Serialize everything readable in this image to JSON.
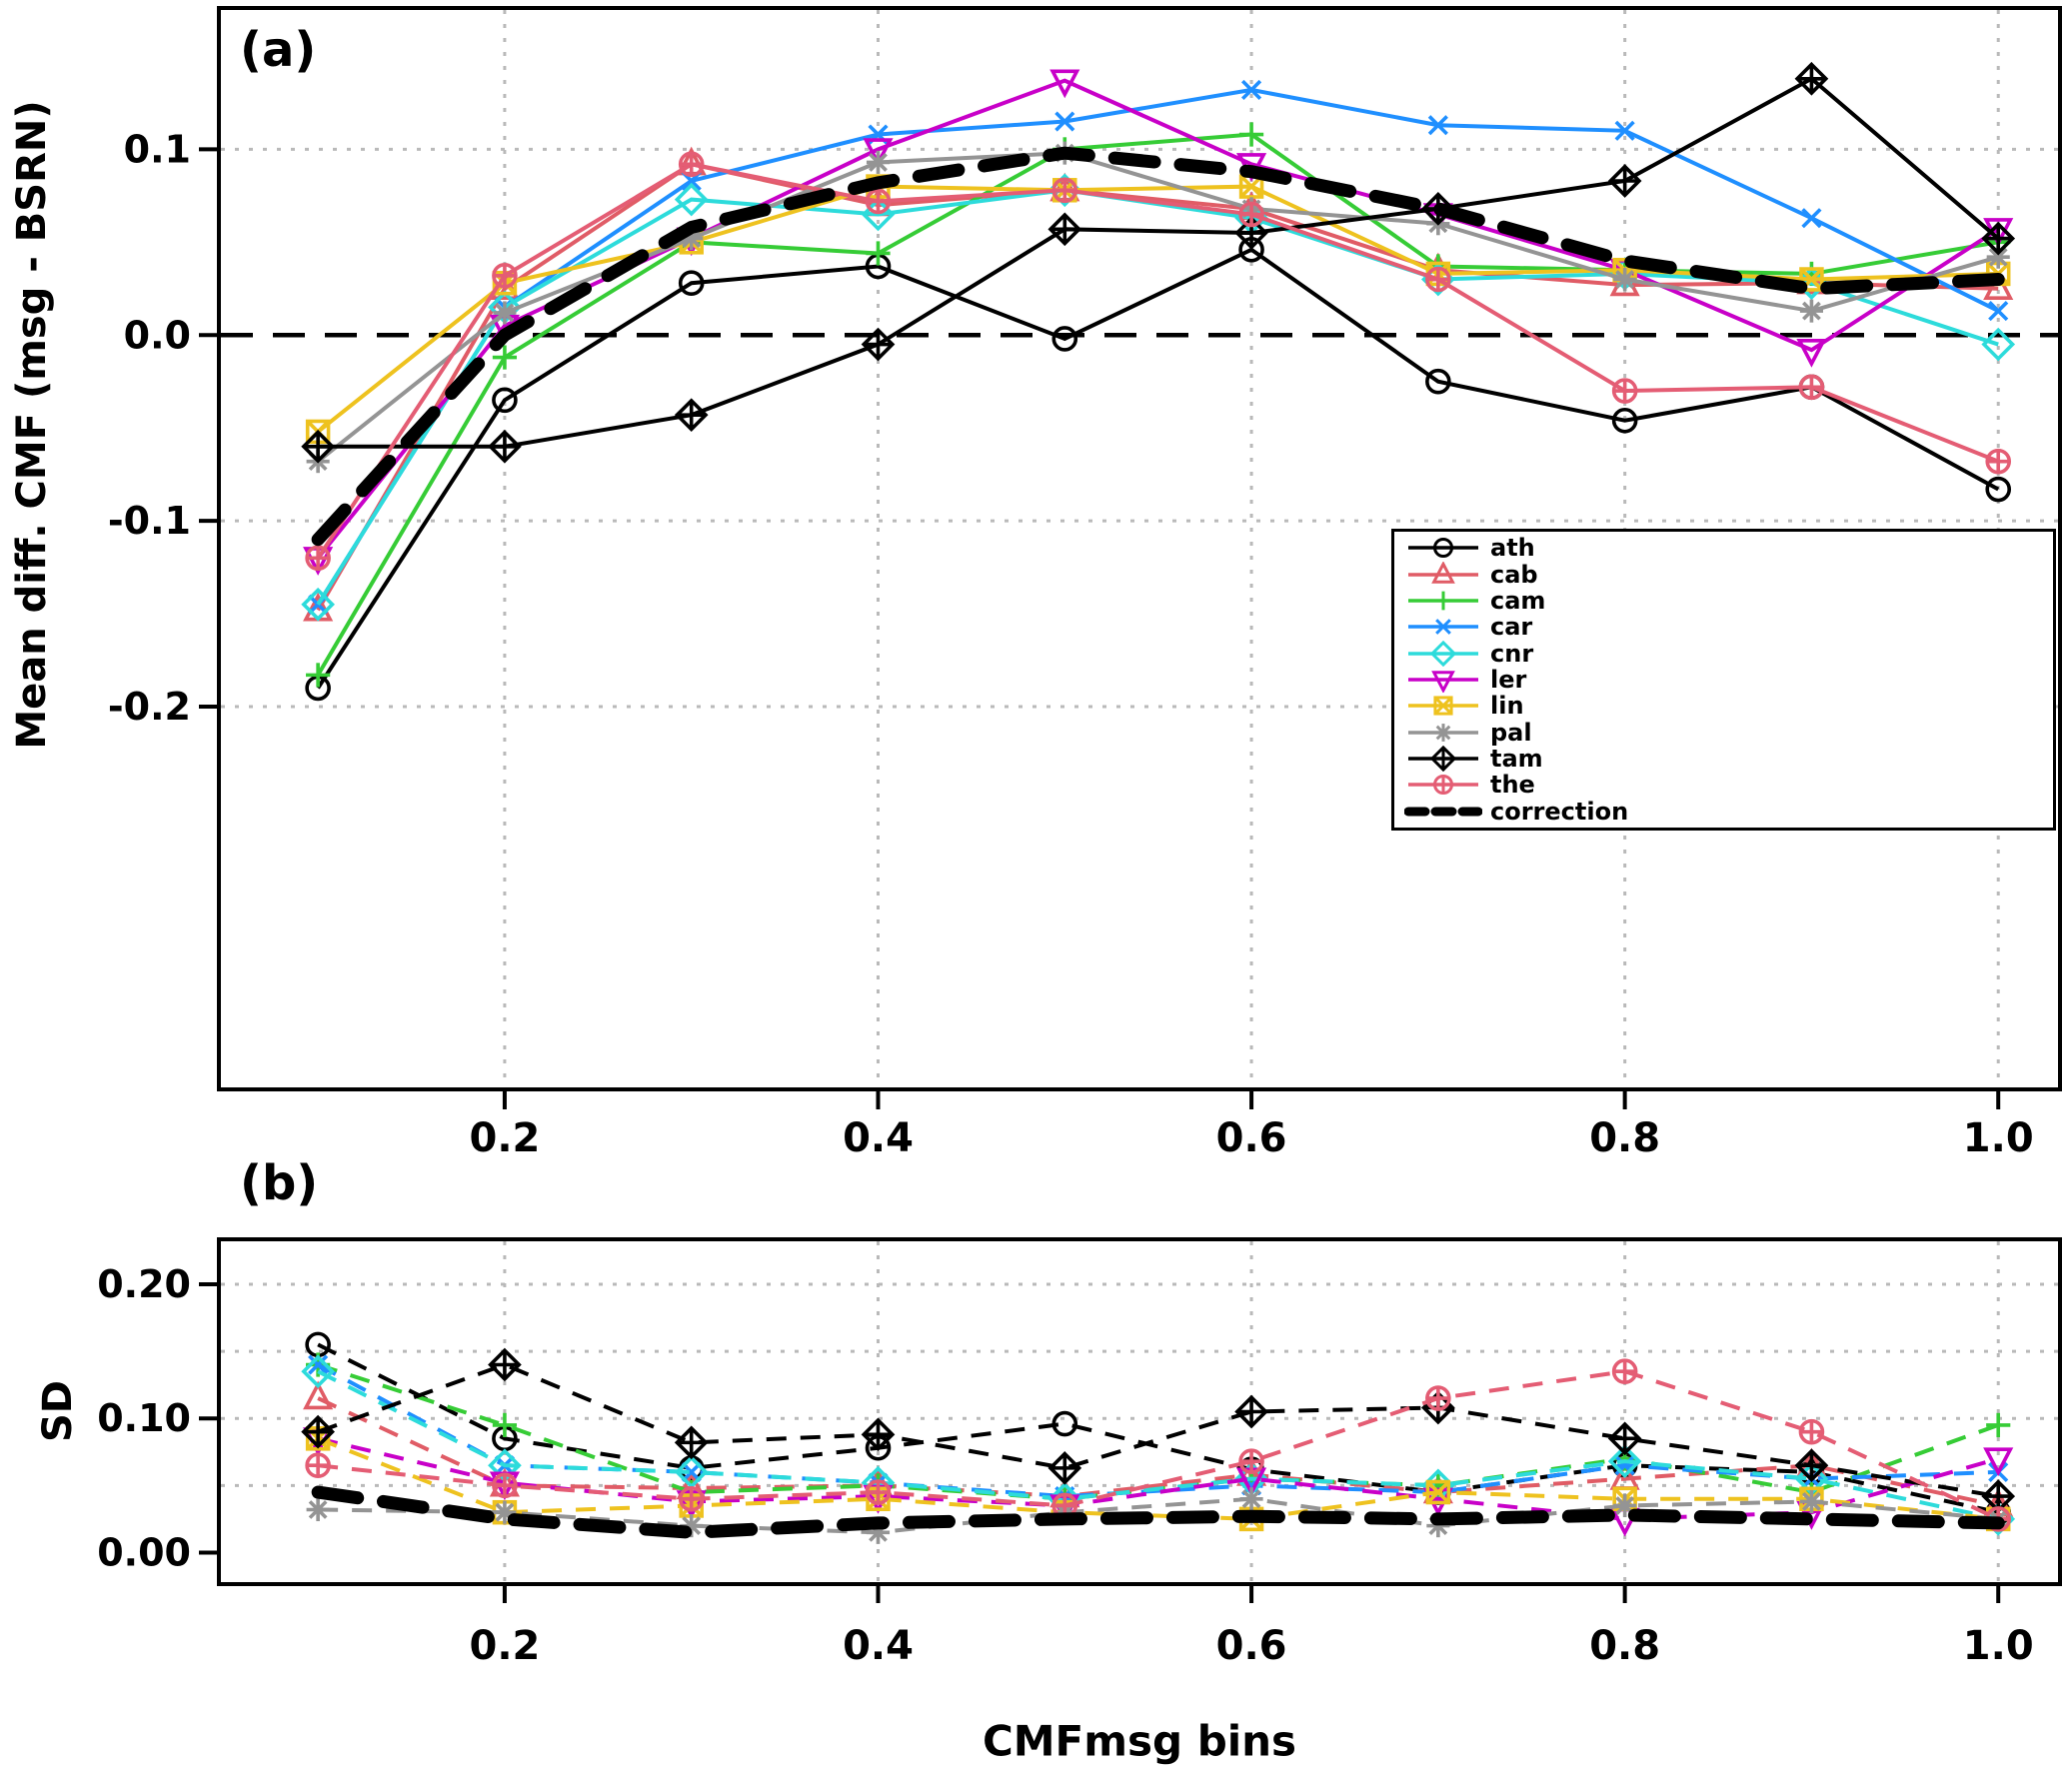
{
  "figure": {
    "panel_a_label": "(a)",
    "panel_b_label": "(b)",
    "x_axis_title": "CMFmsg bins",
    "panel_a_y_title": "Mean diff. CMF (msg - BSRN)",
    "panel_b_y_title": "SD"
  },
  "series_styles": [
    {
      "name": "ath",
      "color": "#000000",
      "marker": "circle",
      "thick": false
    },
    {
      "name": "cab",
      "color": "#e05c66",
      "marker": "triangle-up",
      "thick": false
    },
    {
      "name": "cam",
      "color": "#36cc36",
      "marker": "plus",
      "thick": false
    },
    {
      "name": "car",
      "color": "#1f8fff",
      "marker": "x",
      "thick": false
    },
    {
      "name": "cnr",
      "color": "#2ddbdb",
      "marker": "diamond",
      "thick": false
    },
    {
      "name": "ler",
      "color": "#c800c8",
      "marker": "triangle-down",
      "thick": false
    },
    {
      "name": "lin",
      "color": "#eec21f",
      "marker": "square-x",
      "thick": false
    },
    {
      "name": "pal",
      "color": "#949494",
      "marker": "asterisk",
      "thick": false
    },
    {
      "name": "tam",
      "color": "#000000",
      "marker": "diamond-plus",
      "thick": false
    },
    {
      "name": "the",
      "color": "#e45d74",
      "marker": "circle-plus",
      "thick": false
    },
    {
      "name": "correction",
      "color": "#000000",
      "marker": "none",
      "thick": true
    }
  ],
  "legend": {
    "entries": [
      "ath",
      "cab",
      "cam",
      "car",
      "cnr",
      "ler",
      "lin",
      "pal",
      "tam",
      "the",
      "correction"
    ]
  },
  "chart_data": [
    {
      "type": "line",
      "panel": "a",
      "y_axis_title": "Mean diff. CMF (msg - BSRN)",
      "x": [
        0.1,
        0.2,
        0.3,
        0.4,
        0.5,
        0.6,
        0.7,
        0.8,
        0.9,
        1.0
      ],
      "xlim": [
        0.048,
        1.032
      ],
      "ylim": [
        -0.405,
        0.175
      ],
      "xticks": [
        0.2,
        0.4,
        0.6,
        0.8,
        1.0
      ],
      "xtick_labels": [
        "0.2",
        "0.4",
        "0.6",
        "0.8",
        "1.0"
      ],
      "yticks": [
        0.1,
        0.0,
        -0.1,
        -0.2
      ],
      "ytick_labels": [
        "0.1",
        "0.0",
        "-0.1",
        "-0.2"
      ],
      "ygrid": [
        0.1,
        -0.1,
        -0.2
      ],
      "zero_line": 0.0,
      "grid": true,
      "line_style": "solid",
      "legend_position": "right-middle",
      "series": [
        {
          "name": "ath",
          "values": [
            -0.19,
            -0.035,
            0.028,
            0.037,
            -0.002,
            0.046,
            -0.025,
            -0.046,
            -0.028,
            -0.083
          ]
        },
        {
          "name": "cab",
          "values": [
            -0.148,
            0.025,
            0.092,
            0.07,
            0.078,
            0.068,
            0.035,
            0.027,
            0.028,
            0.025
          ]
        },
        {
          "name": "cam",
          "values": [
            -0.183,
            -0.012,
            0.05,
            0.044,
            0.1,
            0.108,
            0.037,
            0.035,
            0.033,
            0.05
          ]
        },
        {
          "name": "car",
          "values": [
            -0.145,
            0.015,
            0.083,
            0.108,
            0.115,
            0.132,
            0.113,
            0.11,
            0.063,
            0.013
          ]
        },
        {
          "name": "cnr",
          "values": [
            -0.145,
            0.015,
            0.073,
            0.065,
            0.078,
            0.063,
            0.03,
            0.033,
            0.028,
            -0.005
          ]
        },
        {
          "name": "ler",
          "values": [
            -0.12,
            0.005,
            0.052,
            0.1,
            0.137,
            0.092,
            0.065,
            0.035,
            -0.008,
            0.057
          ]
        },
        {
          "name": "lin",
          "values": [
            -0.052,
            0.028,
            0.05,
            0.08,
            0.078,
            0.08,
            0.033,
            0.035,
            0.03,
            0.033
          ]
        },
        {
          "name": "pal",
          "values": [
            -0.068,
            0.012,
            0.052,
            0.093,
            0.098,
            0.068,
            0.06,
            0.03,
            0.013,
            0.042
          ]
        },
        {
          "name": "tam",
          "values": [
            -0.06,
            -0.06,
            -0.043,
            -0.005,
            0.057,
            0.055,
            0.068,
            0.083,
            0.138,
            0.052
          ]
        },
        {
          "name": "the",
          "values": [
            -0.12,
            0.032,
            0.092,
            0.072,
            0.078,
            0.065,
            0.03,
            -0.03,
            -0.028,
            -0.068
          ]
        },
        {
          "name": "correction",
          "values": [
            -0.11,
            0.0,
            0.058,
            0.082,
            0.098,
            0.088,
            0.068,
            0.04,
            0.025,
            0.03
          ]
        }
      ]
    },
    {
      "type": "line",
      "panel": "b",
      "y_axis_title": "SD",
      "x": [
        0.1,
        0.2,
        0.3,
        0.4,
        0.5,
        0.6,
        0.7,
        0.8,
        0.9,
        1.0
      ],
      "xlim": [
        0.048,
        1.032
      ],
      "ylim": [
        -0.022,
        0.232
      ],
      "xticks": [
        0.2,
        0.4,
        0.6,
        0.8,
        1.0
      ],
      "xtick_labels": [
        "0.2",
        "0.4",
        "0.6",
        "0.8",
        "1.0"
      ],
      "yticks": [
        0.2,
        0.1,
        0.0
      ],
      "ytick_labels": [
        "0.20",
        "0.10",
        "0.00"
      ],
      "ygrid": [
        0.05,
        0.1,
        0.15,
        0.2
      ],
      "zero_line": null,
      "grid": true,
      "line_style": "dashed",
      "series": [
        {
          "name": "ath",
          "values": [
            0.155,
            0.085,
            0.063,
            0.078,
            0.096,
            0.062,
            0.045,
            0.065,
            0.06,
            0.03
          ]
        },
        {
          "name": "cab",
          "values": [
            0.115,
            0.05,
            0.048,
            0.05,
            0.042,
            0.058,
            0.045,
            0.055,
            0.065,
            0.035
          ]
        },
        {
          "name": "cam",
          "values": [
            0.14,
            0.095,
            0.045,
            0.05,
            0.04,
            0.055,
            0.05,
            0.07,
            0.045,
            0.095
          ]
        },
        {
          "name": "car",
          "values": [
            0.14,
            0.065,
            0.06,
            0.052,
            0.042,
            0.05,
            0.045,
            0.065,
            0.055,
            0.06
          ]
        },
        {
          "name": "cnr",
          "values": [
            0.135,
            0.065,
            0.06,
            0.052,
            0.04,
            0.055,
            0.05,
            0.068,
            0.055,
            0.025
          ]
        },
        {
          "name": "ler",
          "values": [
            0.085,
            0.052,
            0.038,
            0.042,
            0.035,
            0.055,
            0.04,
            0.025,
            0.03,
            0.07
          ]
        },
        {
          "name": "lin",
          "values": [
            0.085,
            0.03,
            0.035,
            0.04,
            0.03,
            0.025,
            0.045,
            0.04,
            0.04,
            0.025
          ]
        },
        {
          "name": "pal",
          "values": [
            0.032,
            0.03,
            0.02,
            0.015,
            0.03,
            0.04,
            0.02,
            0.035,
            0.038,
            0.025
          ]
        },
        {
          "name": "tam",
          "values": [
            0.09,
            0.14,
            0.082,
            0.088,
            0.063,
            0.105,
            0.108,
            0.085,
            0.065,
            0.042
          ]
        },
        {
          "name": "the",
          "values": [
            0.065,
            0.05,
            0.04,
            0.045,
            0.035,
            0.068,
            0.115,
            0.135,
            0.09,
            0.025
          ]
        },
        {
          "name": "correction",
          "values": [
            0.045,
            0.025,
            0.015,
            0.022,
            0.025,
            0.027,
            0.025,
            0.028,
            0.025,
            0.022
          ]
        }
      ]
    }
  ]
}
